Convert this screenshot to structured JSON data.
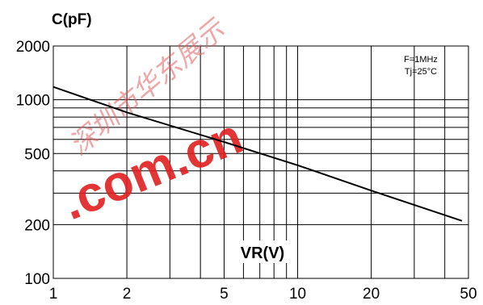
{
  "chart_data": {
    "type": "line",
    "ylabel": "C(pF)",
    "xlabel": "VR(V)",
    "x_scale": "log",
    "y_scale": "log",
    "xlim": [
      1,
      50
    ],
    "ylim": [
      100,
      2000
    ],
    "x_ticks": [
      {
        "value": 1,
        "label": "1"
      },
      {
        "value": 2,
        "label": "2"
      },
      {
        "value": 5,
        "label": "5"
      },
      {
        "value": 10,
        "label": "10"
      },
      {
        "value": 20,
        "label": "20"
      },
      {
        "value": 50,
        "label": "50"
      }
    ],
    "y_ticks": [
      {
        "value": 100,
        "label": "100"
      },
      {
        "value": 200,
        "label": "200"
      },
      {
        "value": 500,
        "label": "500"
      },
      {
        "value": 1000,
        "label": "1000"
      },
      {
        "value": 2000,
        "label": "2000"
      }
    ],
    "x_grid": [
      2,
      3,
      4,
      5,
      6,
      7,
      8,
      9,
      10,
      20,
      30,
      40
    ],
    "y_grid": [
      200,
      300,
      400,
      500,
      600,
      700,
      800,
      900,
      1000
    ],
    "grid": true,
    "annotations": [
      "F=1MHz",
      "Tj=25°C"
    ],
    "series": [
      {
        "color": "#000000",
        "points": [
          {
            "x": 1,
            "y": 1180
          },
          {
            "x": 2,
            "y": 850
          },
          {
            "x": 5,
            "y": 580
          },
          {
            "x": 10,
            "y": 430
          },
          {
            "x": 20,
            "y": 310
          },
          {
            "x": 47,
            "y": 210
          }
        ]
      }
    ]
  },
  "watermark": {
    "chinese": "深圳市华东展示",
    "domain": ".com.cn"
  }
}
